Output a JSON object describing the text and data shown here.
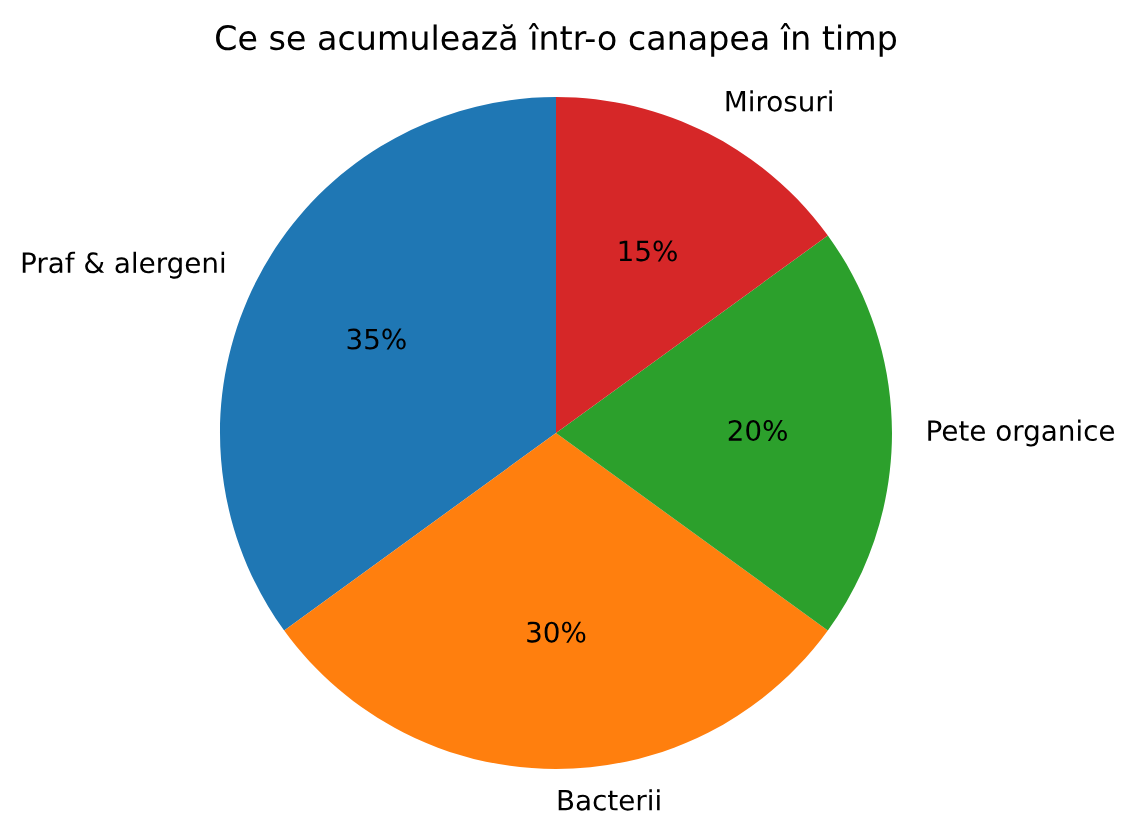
{
  "chart_data": {
    "type": "pie",
    "title": "Ce se acumulează într-o canapea în timp",
    "categories": [
      "Praf & alergeni",
      "Bacterii",
      "Pete organice",
      "Mirosuri"
    ],
    "values": [
      35,
      30,
      20,
      15
    ],
    "colors": [
      "#1f77b4",
      "#ff7f0e",
      "#2ca02c",
      "#d62728"
    ],
    "value_labels": [
      "35%",
      "30%",
      "20%",
      "15%"
    ]
  }
}
